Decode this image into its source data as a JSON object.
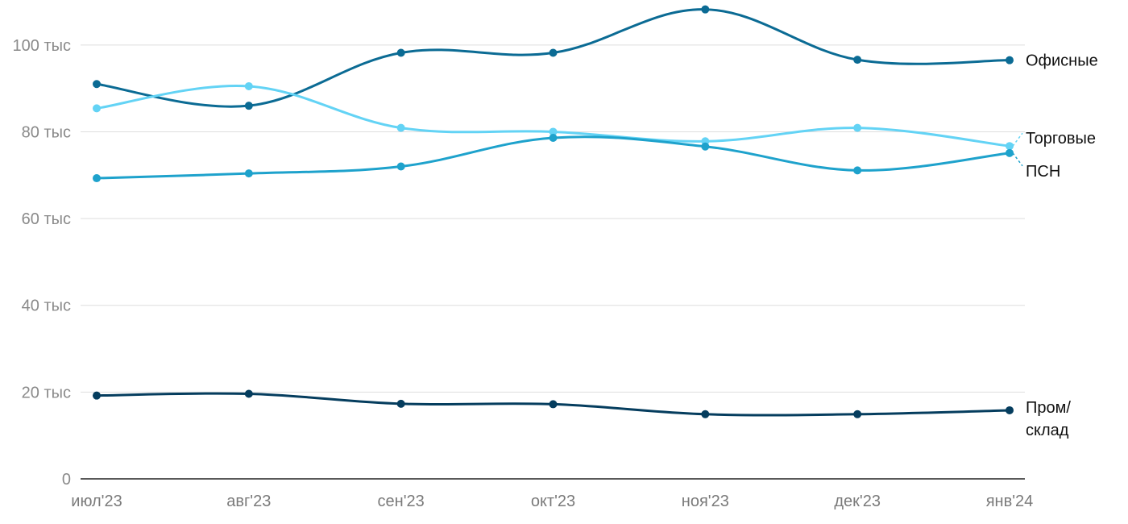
{
  "chart_data": {
    "type": "line",
    "title": "",
    "xlabel": "",
    "ylabel": "",
    "categories": [
      "июл'23",
      "авг'23",
      "сен'23",
      "окт'23",
      "ноя'23",
      "дек'23",
      "янв'24"
    ],
    "ylim": [
      0,
      110000
    ],
    "yticks": [
      {
        "value": 0,
        "label": "0"
      },
      {
        "value": 20000,
        "label": "20 тыс"
      },
      {
        "value": 40000,
        "label": "40 тыс"
      },
      {
        "value": 60000,
        "label": "60 тыс"
      },
      {
        "value": 80000,
        "label": "80 тыс"
      },
      {
        "value": 100000,
        "label": "100 тыс"
      }
    ],
    "grid": true,
    "legend": "direct labels at right",
    "series": [
      {
        "name": "Офисные",
        "color": "#0b6b94",
        "values": [
          91000,
          86000,
          98200,
          98200,
          108200,
          96600,
          96500
        ]
      },
      {
        "name": "Торговые",
        "color": "#63d3f5",
        "values": [
          85400,
          90500,
          80900,
          80000,
          77800,
          80900,
          76700
        ]
      },
      {
        "name": "ПСН",
        "color": "#1ea2cc",
        "values": [
          69300,
          70400,
          72000,
          78600,
          76600,
          71100,
          75100
        ]
      },
      {
        "name": "Пром/\nсклад",
        "color": "#053d5e",
        "values": [
          19200,
          19600,
          17300,
          17200,
          14900,
          14900,
          15800
        ]
      }
    ]
  }
}
